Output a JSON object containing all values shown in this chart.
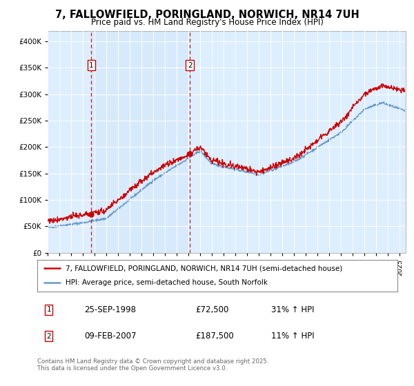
{
  "title": "7, FALLOWFIELD, PORINGLAND, NORWICH, NR14 7UH",
  "subtitle": "Price paid vs. HM Land Registry's House Price Index (HPI)",
  "legend_line1": "7, FALLOWFIELD, PORINGLAND, NORWICH, NR14 7UH (semi-detached house)",
  "legend_line2": "HPI: Average price, semi-detached house, South Norfolk",
  "purchase1_date": "25-SEP-1998",
  "purchase1_price": 72500,
  "purchase1_hpi": "31% ↑ HPI",
  "purchase1_label": "1",
  "purchase2_date": "09-FEB-2007",
  "purchase2_price": 187500,
  "purchase2_hpi": "11% ↑ HPI",
  "purchase2_label": "2",
  "footer": "Contains HM Land Registry data © Crown copyright and database right 2025.\nThis data is licensed under the Open Government Licence v3.0.",
  "house_color": "#cc0000",
  "hpi_color": "#6699cc",
  "shade_color": "#ddeeff",
  "plot_bg": "#ffffff",
  "ylim": [
    0,
    420000
  ],
  "yticks": [
    0,
    50000,
    100000,
    150000,
    200000,
    250000,
    300000,
    350000,
    400000
  ],
  "xstart": 1995.0,
  "xend": 2025.5,
  "p1_year_dec": 1998.73,
  "p2_year_dec": 2007.11
}
